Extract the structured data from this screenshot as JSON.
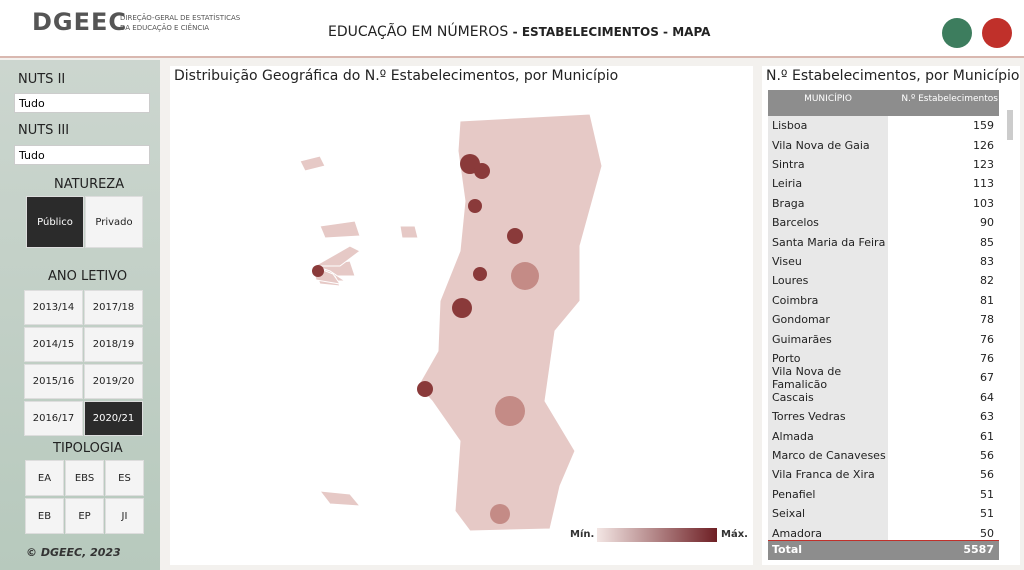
{
  "header": {
    "logo": "DGEEC",
    "org_line1": "DIREÇÃO-GERAL DE ESTATÍSTICAS",
    "org_line2": "DA EDUCAÇÃO E CIÊNCIA",
    "title": "EDUCAÇÃO EM NÚMEROS",
    "subtitle": "- ESTABELECIMENTOS - MAPA"
  },
  "filters": {
    "nuts2": {
      "label": "NUTS II",
      "value": "Tudo"
    },
    "nuts3": {
      "label": "NUTS III",
      "value": "Tudo"
    },
    "natureza": {
      "label": "NATUREZA",
      "options": [
        "Público",
        "Privado"
      ],
      "selected": 0
    },
    "ano_letivo": {
      "label": "ANO LETIVO",
      "options": [
        "2013/14",
        "2017/18",
        "2014/15",
        "2018/19",
        "2015/16",
        "2019/20",
        "2016/17",
        "2020/21"
      ],
      "selected": 7
    },
    "tipologia": {
      "label": "TIPOLOGIA",
      "options": [
        "EA",
        "EBS",
        "ES",
        "EB",
        "EP",
        "JI"
      ]
    }
  },
  "footer": "© DGEEC, 2023",
  "map": {
    "title": "Distribuição Geográfica do N.º Estabelecimentos, por Município",
    "legend_min": "Mín.",
    "legend_max": "Máx."
  },
  "table": {
    "title": "N.º Estabelecimentos, por Município",
    "columns": [
      "MUNICÍPIO",
      "N.º Estabelecimentos"
    ],
    "rows": [
      [
        "Lisboa",
        159
      ],
      [
        "Vila Nova de Gaia",
        126
      ],
      [
        "Sintra",
        123
      ],
      [
        "Leiria",
        113
      ],
      [
        "Braga",
        103
      ],
      [
        "Barcelos",
        90
      ],
      [
        "Santa Maria da Feira",
        85
      ],
      [
        "Viseu",
        83
      ],
      [
        "Loures",
        82
      ],
      [
        "Coimbra",
        81
      ],
      [
        "Gondomar",
        78
      ],
      [
        "Guimarães",
        76
      ],
      [
        "Porto",
        76
      ],
      [
        "Vila Nova de Famalicão",
        67
      ],
      [
        "Cascais",
        64
      ],
      [
        "Torres Vedras",
        63
      ],
      [
        "Almada",
        61
      ],
      [
        "Marco de Canaveses",
        56
      ],
      [
        "Vila Franca de Xira",
        56
      ],
      [
        "Penafiel",
        51
      ],
      [
        "Seixal",
        51
      ],
      [
        "Amadora",
        50
      ]
    ],
    "total": {
      "label": "Total",
      "value": 5587
    }
  }
}
